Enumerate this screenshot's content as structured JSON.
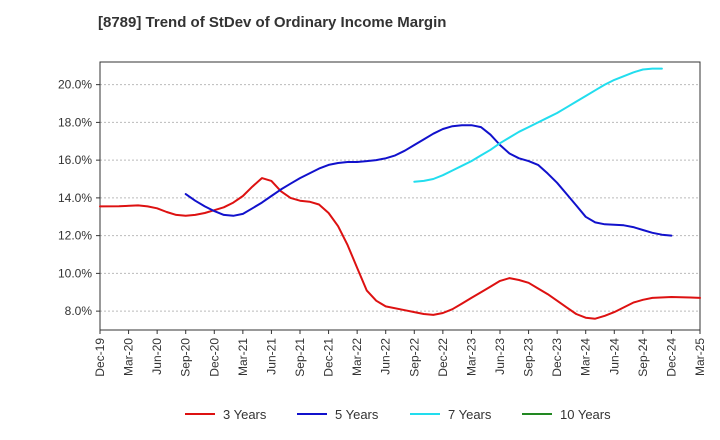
{
  "chart_data": {
    "type": "line",
    "title": "[8789]  Trend of StDev of Ordinary Income Margin",
    "xlabel": "",
    "ylabel": "",
    "ylim": [
      7.0,
      21.2
    ],
    "y_ticks": [
      "8.0%",
      "10.0%",
      "12.0%",
      "14.0%",
      "16.0%",
      "18.0%",
      "20.0%"
    ],
    "y_tick_values": [
      8,
      10,
      12,
      14,
      16,
      18,
      20
    ],
    "x_ticks": [
      "Dec-19",
      "Mar-20",
      "Jun-20",
      "Sep-20",
      "Dec-20",
      "Mar-21",
      "Jun-21",
      "Sep-21",
      "Dec-21",
      "Mar-22",
      "Jun-22",
      "Sep-22",
      "Dec-22",
      "Mar-23",
      "Jun-23",
      "Sep-23",
      "Dec-23",
      "Mar-24",
      "Jun-24",
      "Sep-24",
      "Dec-24",
      "Mar-25"
    ],
    "x_unit": "month index from Dec-19",
    "grid": "horizontal",
    "legend_position": "bottom",
    "series": [
      {
        "name": "3 Years",
        "color": "#dd1111",
        "points": [
          [
            0,
            13.55
          ],
          [
            2,
            13.56
          ],
          [
            4,
            13.6
          ],
          [
            5,
            13.55
          ],
          [
            6,
            13.45
          ],
          [
            7,
            13.25
          ],
          [
            8,
            13.1
          ],
          [
            9,
            13.05
          ],
          [
            10,
            13.1
          ],
          [
            11,
            13.2
          ],
          [
            12,
            13.35
          ],
          [
            13,
            13.5
          ],
          [
            14,
            13.75
          ],
          [
            15,
            14.1
          ],
          [
            16,
            14.6
          ],
          [
            17,
            15.05
          ],
          [
            18,
            14.9
          ],
          [
            19,
            14.35
          ],
          [
            20,
            14.0
          ],
          [
            21,
            13.85
          ],
          [
            22,
            13.8
          ],
          [
            23,
            13.65
          ],
          [
            24,
            13.2
          ],
          [
            25,
            12.5
          ],
          [
            26,
            11.5
          ],
          [
            27,
            10.3
          ],
          [
            28,
            9.1
          ],
          [
            29,
            8.55
          ],
          [
            30,
            8.25
          ],
          [
            32,
            8.05
          ],
          [
            33,
            7.95
          ],
          [
            34,
            7.85
          ],
          [
            35,
            7.8
          ],
          [
            36,
            7.9
          ],
          [
            37,
            8.1
          ],
          [
            38,
            8.4
          ],
          [
            39,
            8.7
          ],
          [
            40,
            9.0
          ],
          [
            41,
            9.3
          ],
          [
            42,
            9.6
          ],
          [
            43,
            9.75
          ],
          [
            44,
            9.65
          ],
          [
            45,
            9.5
          ],
          [
            46,
            9.2
          ],
          [
            47,
            8.9
          ],
          [
            48,
            8.55
          ],
          [
            49,
            8.2
          ],
          [
            50,
            7.85
          ],
          [
            51,
            7.65
          ],
          [
            52,
            7.6
          ],
          [
            53,
            7.75
          ],
          [
            54,
            7.95
          ],
          [
            55,
            8.2
          ],
          [
            56,
            8.45
          ],
          [
            57,
            8.6
          ],
          [
            58,
            8.7
          ],
          [
            60,
            8.75
          ],
          [
            62,
            8.72
          ],
          [
            63,
            8.7
          ]
        ]
      },
      {
        "name": "5 Years",
        "color": "#1111cc",
        "points": [
          [
            9,
            14.2
          ],
          [
            10,
            13.85
          ],
          [
            11,
            13.55
          ],
          [
            12,
            13.3
          ],
          [
            13,
            13.1
          ],
          [
            14,
            13.05
          ],
          [
            15,
            13.15
          ],
          [
            16,
            13.45
          ],
          [
            17,
            13.75
          ],
          [
            18,
            14.1
          ],
          [
            19,
            14.45
          ],
          [
            20,
            14.75
          ],
          [
            21,
            15.05
          ],
          [
            22,
            15.3
          ],
          [
            23,
            15.55
          ],
          [
            24,
            15.75
          ],
          [
            25,
            15.85
          ],
          [
            26,
            15.9
          ],
          [
            27,
            15.9
          ],
          [
            28,
            15.95
          ],
          [
            29,
            16.0
          ],
          [
            30,
            16.1
          ],
          [
            31,
            16.25
          ],
          [
            32,
            16.5
          ],
          [
            33,
            16.8
          ],
          [
            34,
            17.1
          ],
          [
            35,
            17.4
          ],
          [
            36,
            17.65
          ],
          [
            37,
            17.8
          ],
          [
            38,
            17.85
          ],
          [
            39,
            17.85
          ],
          [
            40,
            17.75
          ],
          [
            41,
            17.35
          ],
          [
            42,
            16.8
          ],
          [
            43,
            16.35
          ],
          [
            44,
            16.1
          ],
          [
            45,
            15.95
          ],
          [
            46,
            15.75
          ],
          [
            47,
            15.3
          ],
          [
            48,
            14.8
          ],
          [
            49,
            14.2
          ],
          [
            50,
            13.6
          ],
          [
            51,
            13.0
          ],
          [
            52,
            12.7
          ],
          [
            53,
            12.6
          ],
          [
            55,
            12.55
          ],
          [
            56,
            12.45
          ],
          [
            57,
            12.3
          ],
          [
            58,
            12.15
          ],
          [
            59,
            12.05
          ],
          [
            60,
            12.0
          ]
        ]
      },
      {
        "name": "7 Years",
        "color": "#22ddee",
        "points": [
          [
            33,
            14.85
          ],
          [
            34,
            14.9
          ],
          [
            35,
            15.0
          ],
          [
            36,
            15.2
          ],
          [
            37,
            15.45
          ],
          [
            38,
            15.7
          ],
          [
            39,
            15.95
          ],
          [
            40,
            16.25
          ],
          [
            41,
            16.55
          ],
          [
            42,
            16.9
          ],
          [
            43,
            17.2
          ],
          [
            44,
            17.5
          ],
          [
            45,
            17.75
          ],
          [
            46,
            18.0
          ],
          [
            47,
            18.25
          ],
          [
            48,
            18.5
          ],
          [
            49,
            18.8
          ],
          [
            50,
            19.1
          ],
          [
            51,
            19.4
          ],
          [
            52,
            19.7
          ],
          [
            53,
            20.0
          ],
          [
            54,
            20.25
          ],
          [
            55,
            20.45
          ],
          [
            56,
            20.65
          ],
          [
            57,
            20.8
          ],
          [
            58,
            20.85
          ],
          [
            59,
            20.85
          ]
        ]
      },
      {
        "name": "10 Years",
        "color": "#228822",
        "points": []
      }
    ]
  }
}
